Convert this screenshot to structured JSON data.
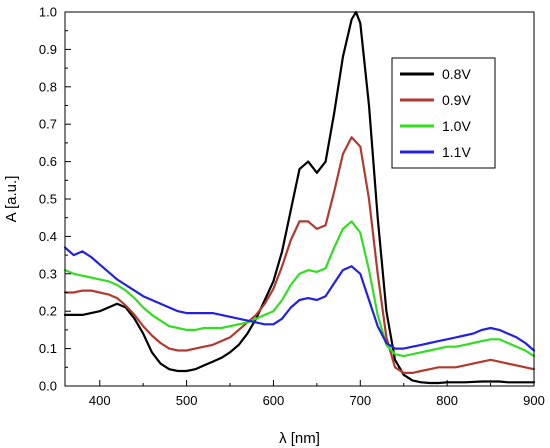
{
  "chart_data": {
    "type": "line",
    "title": "",
    "xlabel": "λ [nm]",
    "ylabel": "A [a.u.]",
    "xlim": [
      360,
      900
    ],
    "ylim": [
      0.0,
      1.0
    ],
    "xticks": [
      400,
      500,
      600,
      700,
      800,
      900
    ],
    "yticks": [
      0.0,
      0.1,
      0.2,
      0.3,
      0.4,
      0.5,
      0.6,
      0.7,
      0.8,
      0.9,
      1.0
    ],
    "xtick_labels": [
      "400",
      "500",
      "600",
      "700",
      "800",
      "900"
    ],
    "ytick_labels": [
      "0.0",
      "0.1",
      "0.2",
      "0.3",
      "0.4",
      "0.5",
      "0.6",
      "0.7",
      "0.8",
      "0.9",
      "1.0"
    ],
    "grid": false,
    "legend_position": "top-right",
    "series": [
      {
        "name": "0.8V",
        "color": "#000000",
        "x": [
          360,
          370,
          380,
          390,
          400,
          410,
          420,
          430,
          440,
          450,
          460,
          470,
          480,
          490,
          500,
          510,
          520,
          530,
          540,
          550,
          560,
          570,
          580,
          590,
          600,
          610,
          620,
          630,
          640,
          650,
          660,
          670,
          680,
          690,
          695,
          700,
          710,
          720,
          730,
          740,
          750,
          760,
          770,
          780,
          790,
          800,
          820,
          840,
          850,
          860,
          870,
          880,
          890,
          900
        ],
        "y": [
          0.19,
          0.19,
          0.19,
          0.195,
          0.2,
          0.21,
          0.22,
          0.21,
          0.18,
          0.14,
          0.09,
          0.06,
          0.045,
          0.04,
          0.04,
          0.045,
          0.055,
          0.065,
          0.075,
          0.09,
          0.11,
          0.14,
          0.18,
          0.23,
          0.28,
          0.36,
          0.47,
          0.58,
          0.6,
          0.57,
          0.6,
          0.73,
          0.88,
          0.98,
          1.0,
          0.97,
          0.75,
          0.45,
          0.2,
          0.07,
          0.03,
          0.015,
          0.01,
          0.008,
          0.008,
          0.01,
          0.01,
          0.012,
          0.012,
          0.012,
          0.01,
          0.01,
          0.01,
          0.01
        ]
      },
      {
        "name": "0.9V",
        "color": "#B03A2E",
        "x": [
          360,
          370,
          380,
          390,
          400,
          410,
          420,
          430,
          440,
          450,
          460,
          470,
          480,
          490,
          500,
          510,
          520,
          530,
          540,
          550,
          560,
          570,
          580,
          590,
          600,
          610,
          620,
          630,
          640,
          650,
          660,
          670,
          680,
          690,
          700,
          710,
          720,
          730,
          740,
          750,
          760,
          770,
          780,
          790,
          800,
          810,
          820,
          830,
          840,
          850,
          860,
          870,
          880,
          890,
          900
        ],
        "y": [
          0.25,
          0.25,
          0.255,
          0.255,
          0.25,
          0.245,
          0.235,
          0.215,
          0.19,
          0.16,
          0.135,
          0.115,
          0.1,
          0.095,
          0.095,
          0.1,
          0.105,
          0.11,
          0.12,
          0.13,
          0.15,
          0.17,
          0.19,
          0.22,
          0.26,
          0.32,
          0.39,
          0.44,
          0.44,
          0.42,
          0.43,
          0.52,
          0.62,
          0.665,
          0.64,
          0.5,
          0.3,
          0.13,
          0.05,
          0.035,
          0.035,
          0.04,
          0.045,
          0.05,
          0.05,
          0.05,
          0.055,
          0.06,
          0.065,
          0.07,
          0.065,
          0.06,
          0.055,
          0.05,
          0.045
        ]
      },
      {
        "name": "1.0V",
        "color": "#33DD22",
        "x": [
          360,
          370,
          380,
          390,
          400,
          410,
          420,
          430,
          440,
          450,
          460,
          470,
          480,
          490,
          500,
          510,
          520,
          530,
          540,
          550,
          560,
          570,
          580,
          590,
          600,
          610,
          620,
          630,
          640,
          650,
          660,
          670,
          680,
          690,
          700,
          710,
          720,
          730,
          740,
          750,
          760,
          770,
          780,
          790,
          800,
          810,
          820,
          830,
          840,
          850,
          860,
          870,
          880,
          890,
          900
        ],
        "y": [
          0.31,
          0.3,
          0.295,
          0.29,
          0.285,
          0.28,
          0.27,
          0.255,
          0.235,
          0.21,
          0.19,
          0.175,
          0.16,
          0.155,
          0.15,
          0.15,
          0.155,
          0.155,
          0.155,
          0.16,
          0.165,
          0.17,
          0.18,
          0.19,
          0.2,
          0.23,
          0.27,
          0.3,
          0.31,
          0.305,
          0.315,
          0.37,
          0.42,
          0.44,
          0.41,
          0.31,
          0.19,
          0.11,
          0.085,
          0.08,
          0.085,
          0.09,
          0.095,
          0.1,
          0.105,
          0.105,
          0.11,
          0.115,
          0.12,
          0.125,
          0.125,
          0.115,
          0.105,
          0.095,
          0.08
        ]
      },
      {
        "name": "1.1V",
        "color": "#2222DD",
        "x": [
          360,
          370,
          380,
          390,
          400,
          410,
          420,
          430,
          440,
          450,
          460,
          470,
          480,
          490,
          500,
          510,
          520,
          530,
          540,
          550,
          560,
          570,
          580,
          590,
          600,
          610,
          620,
          630,
          640,
          650,
          660,
          670,
          680,
          690,
          700,
          710,
          720,
          730,
          740,
          750,
          760,
          770,
          780,
          790,
          800,
          810,
          820,
          830,
          840,
          850,
          860,
          870,
          880,
          890,
          900
        ],
        "y": [
          0.37,
          0.35,
          0.36,
          0.345,
          0.325,
          0.305,
          0.285,
          0.27,
          0.255,
          0.24,
          0.23,
          0.22,
          0.21,
          0.2,
          0.195,
          0.195,
          0.195,
          0.195,
          0.19,
          0.185,
          0.18,
          0.175,
          0.17,
          0.165,
          0.165,
          0.18,
          0.21,
          0.23,
          0.235,
          0.23,
          0.24,
          0.275,
          0.31,
          0.32,
          0.3,
          0.23,
          0.16,
          0.115,
          0.1,
          0.1,
          0.105,
          0.11,
          0.115,
          0.12,
          0.125,
          0.13,
          0.135,
          0.14,
          0.15,
          0.155,
          0.15,
          0.14,
          0.13,
          0.115,
          0.095
        ]
      }
    ]
  }
}
